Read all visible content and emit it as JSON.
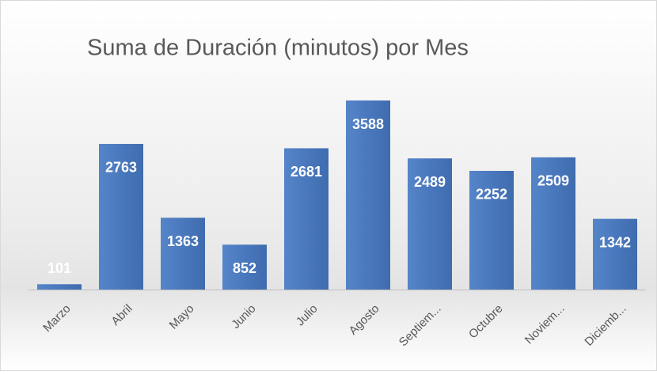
{
  "chart_data": {
    "type": "bar",
    "title": "Suma de Duración (minutos) por Mes",
    "categories": [
      "Marzo",
      "Abril",
      "Mayo",
      "Junio",
      "Julio",
      "Agosto",
      "Septiem...",
      "Octubre",
      "Noviem...",
      "Diciemb..."
    ],
    "values": [
      101,
      2763,
      1363,
      852,
      2681,
      3588,
      2489,
      2252,
      2509,
      1342
    ],
    "color": "#4a78bd"
  }
}
